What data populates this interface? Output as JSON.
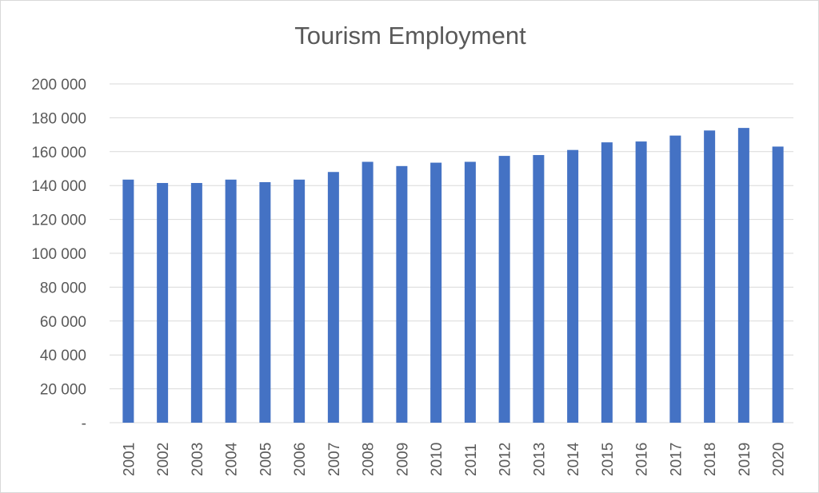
{
  "chart_data": {
    "type": "bar",
    "title": "Tourism Employment",
    "xlabel": "",
    "ylabel": "",
    "categories": [
      "2001",
      "2002",
      "2003",
      "2004",
      "2005",
      "2006",
      "2007",
      "2008",
      "2009",
      "2010",
      "2011",
      "2012",
      "2013",
      "2014",
      "2015",
      "2016",
      "2017",
      "2018",
      "2019",
      "2020"
    ],
    "values": [
      143500,
      141500,
      141500,
      143500,
      142000,
      143500,
      148000,
      154000,
      151500,
      153500,
      154000,
      157500,
      158000,
      161000,
      165500,
      166000,
      169500,
      172500,
      174000,
      163000
    ],
    "ylim": [
      0,
      200000
    ],
    "y_ticks": [
      0,
      20000,
      40000,
      60000,
      80000,
      100000,
      120000,
      140000,
      160000,
      180000,
      200000
    ],
    "y_tick_labels": [
      "-",
      "20 000",
      "40 000",
      "60 000",
      "80 000",
      "100 000",
      "120 000",
      "140 000",
      "160 000",
      "180 000",
      "200 000"
    ],
    "bar_color": "#4472c4",
    "grid": true,
    "legend": "none"
  }
}
